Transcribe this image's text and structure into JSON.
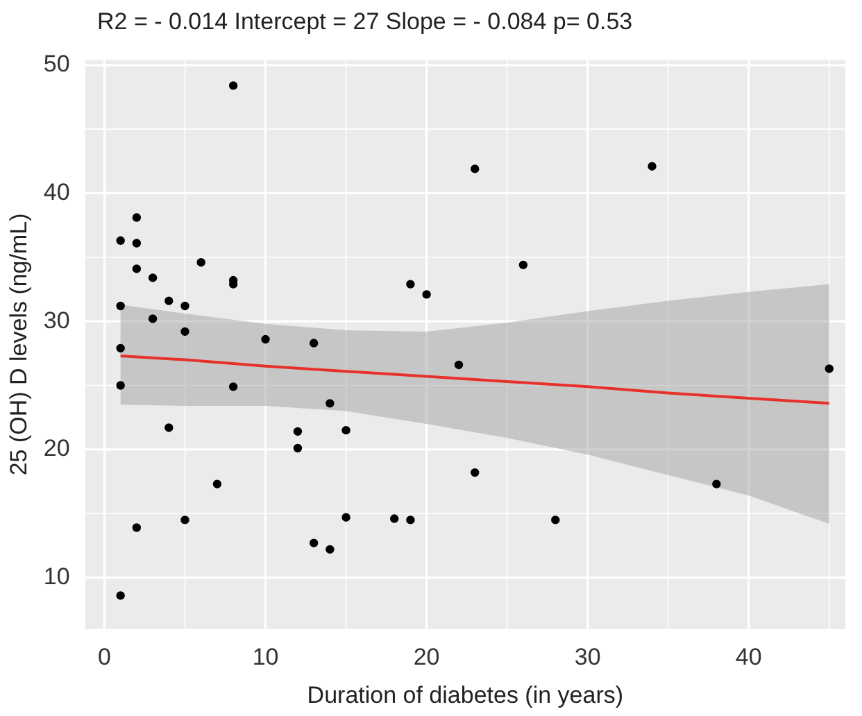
{
  "chart_data": {
    "type": "scatter",
    "title": "R2 = - 0.014 Intercept = 27 Slope = - 0.084 p= 0.53",
    "xlabel": "Duration of diabetes (in years)",
    "ylabel": "25 (OH) D levels (ng/mL)",
    "xlim": [
      -1.2,
      46
    ],
    "ylim": [
      6,
      50.4
    ],
    "xticks": [
      0,
      10,
      20,
      30,
      40
    ],
    "yticks": [
      10,
      20,
      30,
      40,
      50
    ],
    "grid": true,
    "legend": false,
    "marker": "circle",
    "series": [
      {
        "color": "#000000",
        "x": [
          1,
          1,
          1,
          1,
          1,
          2,
          2,
          2,
          2,
          3,
          3,
          4,
          4,
          5,
          5,
          5,
          6,
          7,
          8,
          8,
          8,
          8,
          10,
          12,
          12,
          13,
          13,
          14,
          14,
          15,
          15,
          18,
          19,
          19,
          20,
          22,
          23,
          23,
          26,
          28,
          34,
          38,
          45
        ],
        "values": [
          36.3,
          31.2,
          27.9,
          25.0,
          8.6,
          38.1,
          36.1,
          34.1,
          13.9,
          33.4,
          30.2,
          31.6,
          21.7,
          31.2,
          29.2,
          14.5,
          34.6,
          17.3,
          48.4,
          33.2,
          32.9,
          24.9,
          28.6,
          21.4,
          20.1,
          28.3,
          12.7,
          23.6,
          12.2,
          21.5,
          14.7,
          14.6,
          32.9,
          14.5,
          32.1,
          26.6,
          41.9,
          18.2,
          34.4,
          14.5,
          42.1,
          17.3,
          26.3
        ]
      },
      {
        "type": "line",
        "color": "#e8302a",
        "line_style": "solid",
        "marker": "none",
        "x": [
          1,
          5,
          10,
          15,
          20,
          25,
          30,
          35,
          40,
          45
        ],
        "values": [
          27.3,
          27.0,
          26.5,
          26.1,
          25.7,
          25.3,
          24.9,
          24.4,
          24.0,
          23.6
        ],
        "lower": [
          23.5,
          23.4,
          23.4,
          23.0,
          22.0,
          20.9,
          19.6,
          18.0,
          16.4,
          14.2
        ],
        "upper": [
          31.3,
          30.6,
          29.8,
          29.3,
          29.2,
          29.9,
          30.8,
          31.6,
          32.3,
          32.9
        ]
      }
    ]
  }
}
